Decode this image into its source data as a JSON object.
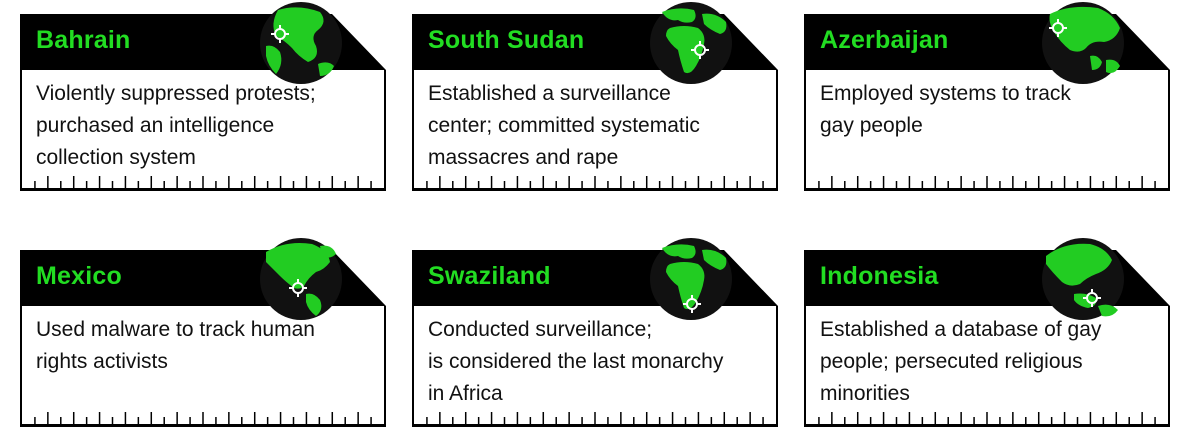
{
  "cards": [
    {
      "country": "Bahrain",
      "lines": [
        "Violently suppressed protests;",
        "purchased an intelligence",
        "collection system"
      ],
      "globe_view": "asia-middle-east"
    },
    {
      "country": "South Sudan",
      "lines": [
        "Established a surveillance",
        "center; committed systematic",
        "massacres and rape"
      ],
      "globe_view": "africa"
    },
    {
      "country": "Azerbaijan",
      "lines": [
        "Employed systems to track",
        "gay people",
        ""
      ],
      "globe_view": "asia"
    },
    {
      "country": "Mexico",
      "lines": [
        "Used malware to track human",
        "rights activists",
        ""
      ],
      "globe_view": "north-america"
    },
    {
      "country": "Swaziland",
      "lines": [
        "Conducted surveillance;",
        "is considered the last monarchy",
        "in Africa"
      ],
      "globe_view": "africa"
    },
    {
      "country": "Indonesia",
      "lines": [
        "Established a database of gay",
        "people; persecuted religious",
        "minorities"
      ],
      "globe_view": "asia-pacific"
    }
  ],
  "colors": {
    "accent_green": "#22dd22",
    "header_black": "#000000",
    "globe_ocean": "#111111",
    "globe_land": "#22cc22"
  },
  "icons": [
    "globe-icon",
    "crosshair-marker-icon"
  ]
}
